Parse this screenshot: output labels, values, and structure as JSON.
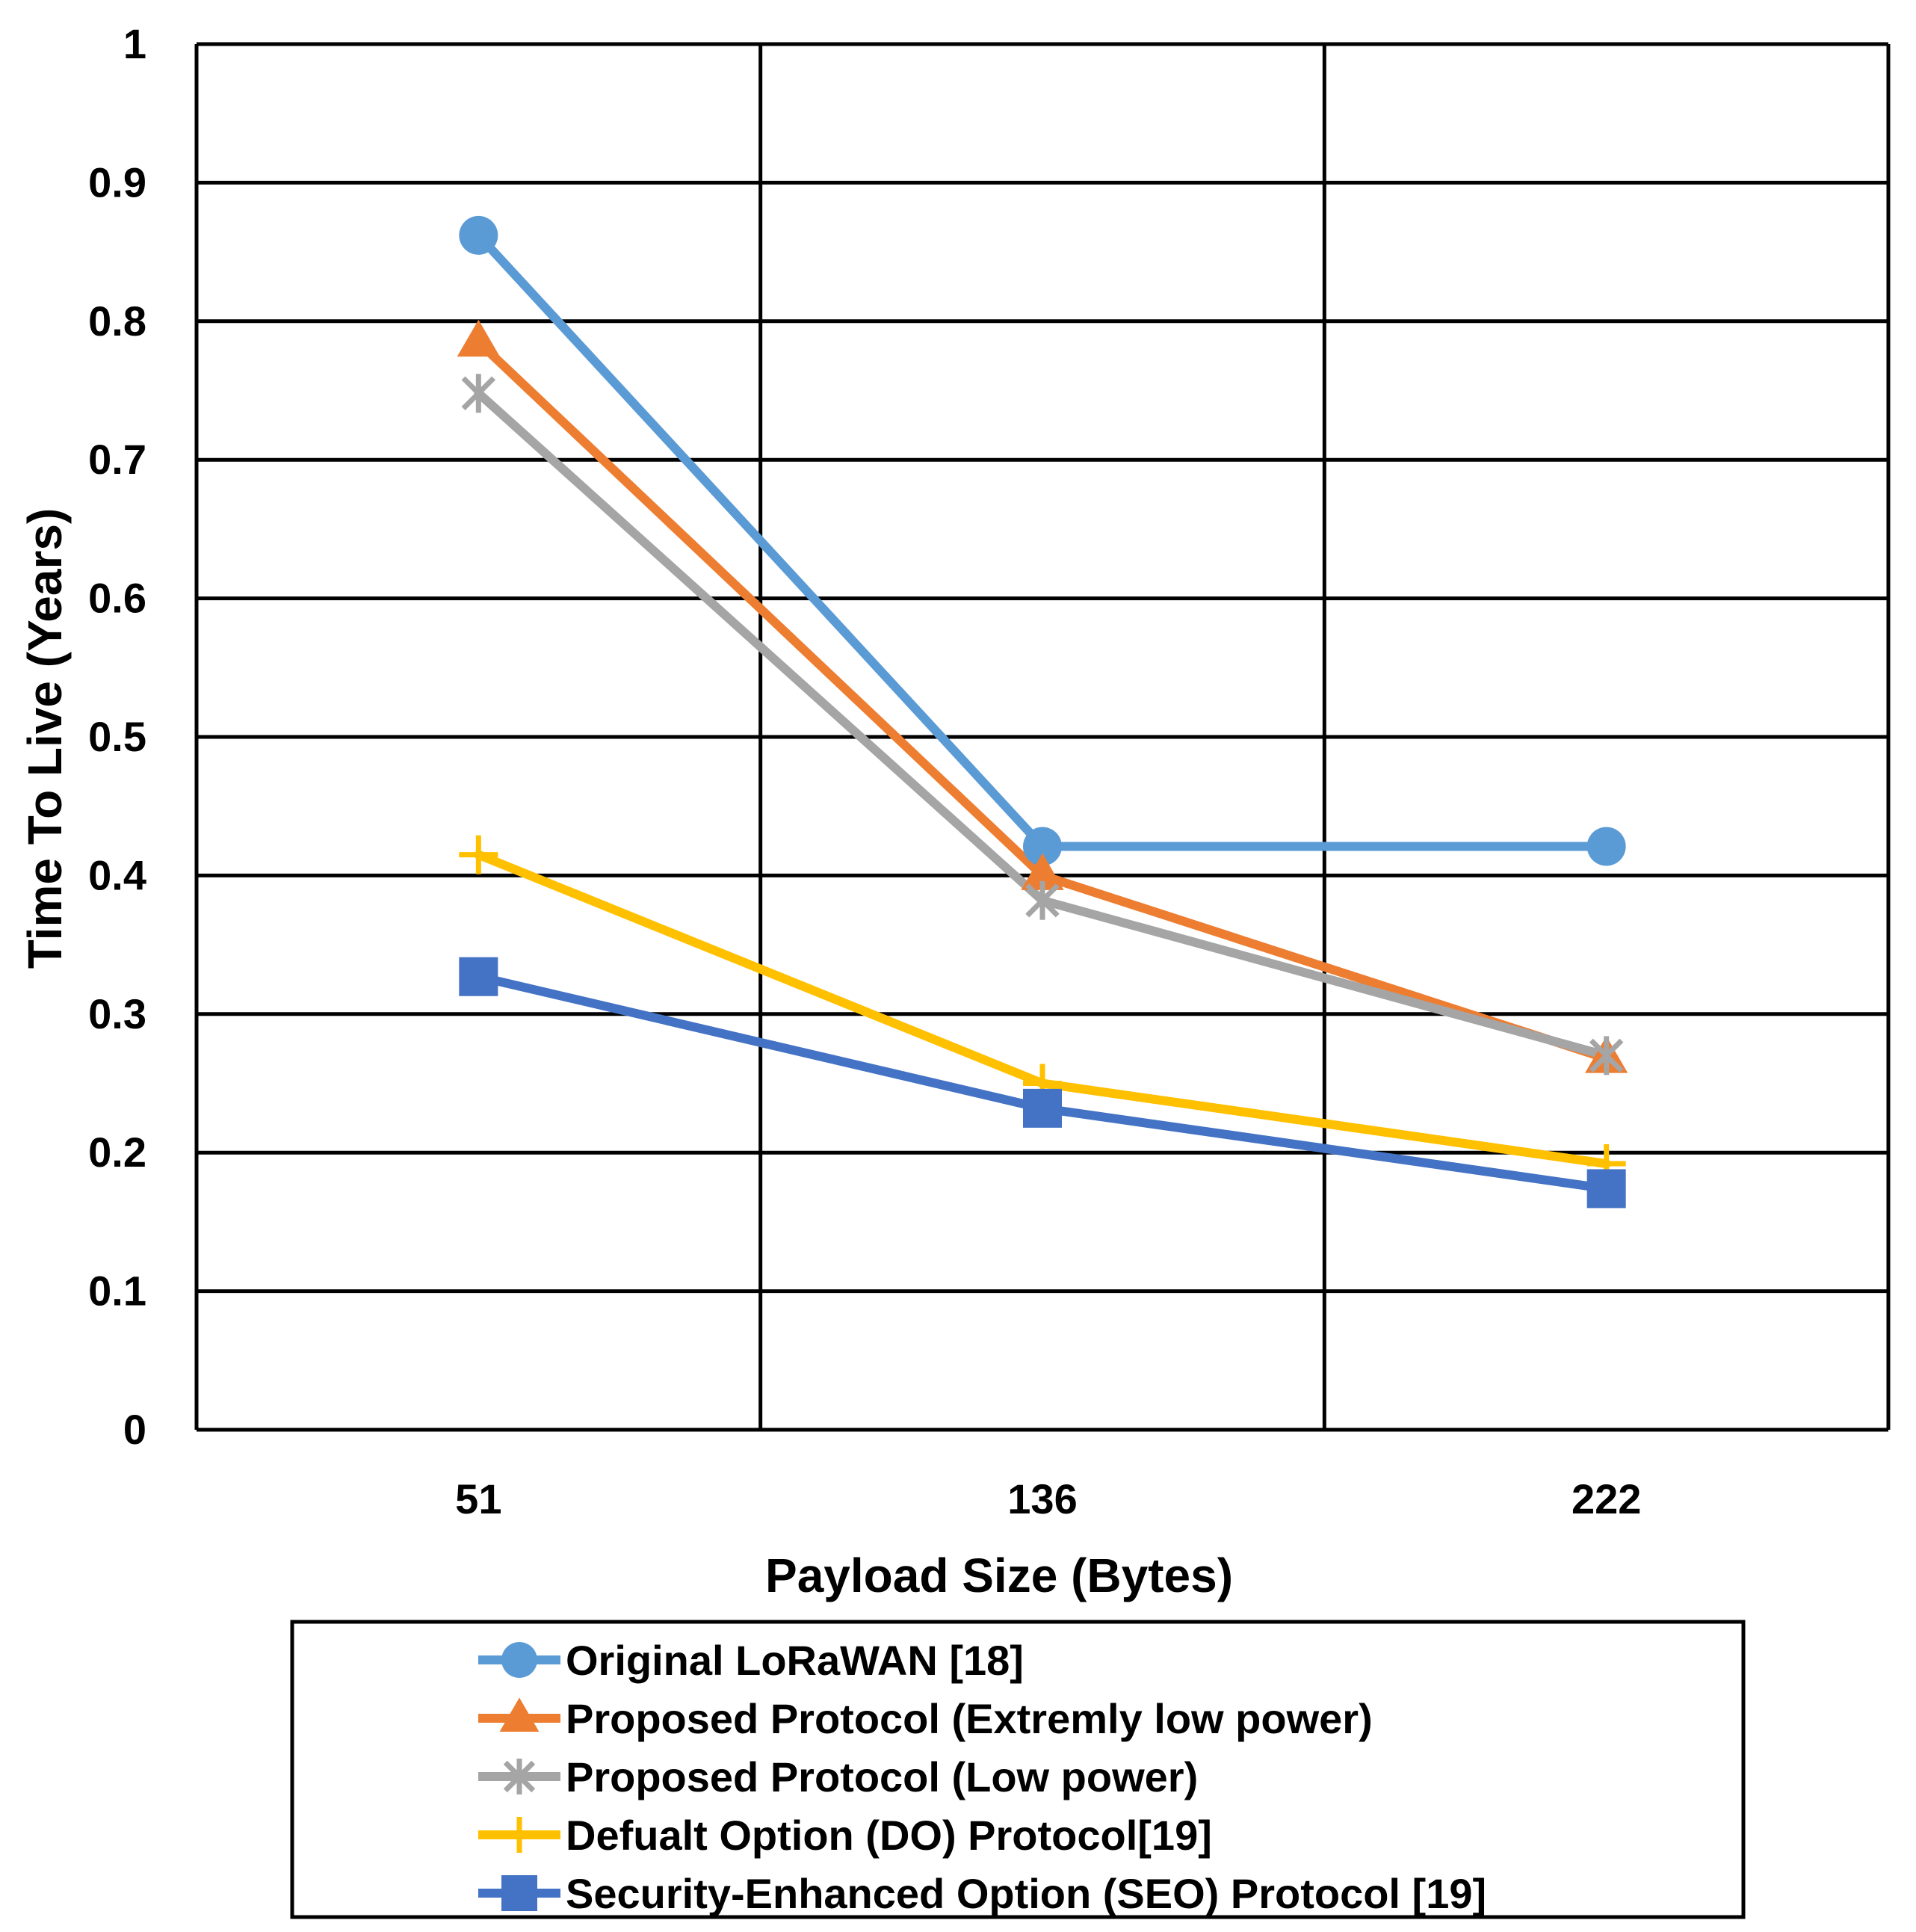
{
  "chart_data": {
    "type": "line",
    "title": "",
    "xlabel": "Payload Size (Bytes)",
    "ylabel": "Time To Live (Years)",
    "categories": [
      "51",
      "136",
      "222"
    ],
    "ylim": [
      0,
      1
    ],
    "yticks": [
      "0",
      "0.1",
      "0.2",
      "0.3",
      "0.4",
      "0.5",
      "0.6",
      "0.7",
      "0.8",
      "0.9",
      "1"
    ],
    "grid": true,
    "legend_position": "bottom",
    "series": [
      {
        "name": "Original LoRaWAN [18]",
        "values": [
          0.862,
          0.421,
          0.421
        ],
        "color": "#5B9BD5",
        "marker": "circle"
      },
      {
        "name": "Proposed Protocol (Extremly low power)",
        "values": [
          0.785,
          0.4,
          0.268
        ],
        "color": "#ED7D31",
        "marker": "triangle"
      },
      {
        "name": "Proposed Protocol (Low power)",
        "values": [
          0.748,
          0.382,
          0.27
        ],
        "color": "#A5A5A5",
        "marker": "asterisk"
      },
      {
        "name": "Defualt Option (DO) Protocol[19]",
        "values": [
          0.415,
          0.25,
          0.192
        ],
        "color": "#FFC000",
        "marker": "plus"
      },
      {
        "name": "Security-Enhanced Option (SEO) Protocol [19]",
        "values": [
          0.327,
          0.232,
          0.174
        ],
        "color": "#4472C4",
        "marker": "square"
      }
    ]
  }
}
